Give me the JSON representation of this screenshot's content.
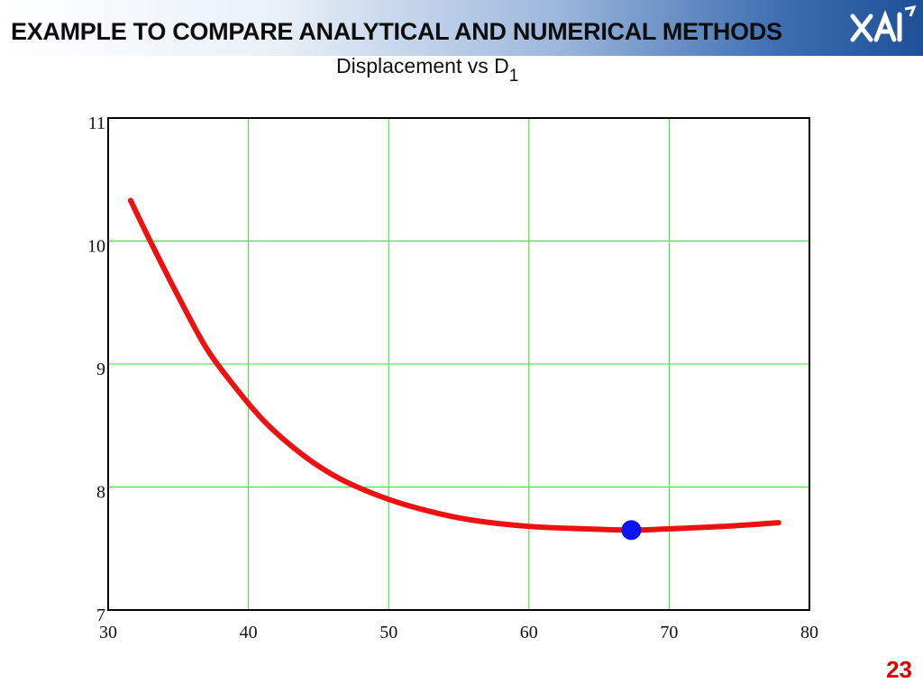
{
  "header": {
    "title": "EXAMPLE TO COMPARE ANALYTICAL AND NUMERICAL METHODS",
    "logo_icon": "xai-logo-icon"
  },
  "chart_data": {
    "type": "line",
    "title_main": "Displacement vs D",
    "title_sub": "1",
    "xlim": [
      30,
      80
    ],
    "ylim": [
      7,
      11
    ],
    "x_ticks": [
      "30",
      "40",
      "50",
      "60",
      "70",
      "80"
    ],
    "y_ticks": [
      "7",
      "8",
      "9",
      "10",
      "11"
    ],
    "grid": true,
    "series": [
      {
        "color": "#ee1111",
        "x": [
          31.6,
          33,
          35,
          37,
          39,
          41,
          43,
          45,
          47,
          50,
          53,
          56,
          60,
          64,
          67.3,
          70,
          74,
          77.8
        ],
        "y": [
          10.33,
          10.0,
          9.55,
          9.13,
          8.82,
          8.55,
          8.34,
          8.17,
          8.04,
          7.9,
          7.8,
          7.73,
          7.68,
          7.66,
          7.65,
          7.66,
          7.68,
          7.71
        ]
      }
    ],
    "marker": {
      "x": 67.3,
      "y": 7.65,
      "color": "#0a14ee"
    },
    "grid_color": "#33dd33"
  },
  "page_number": "23"
}
